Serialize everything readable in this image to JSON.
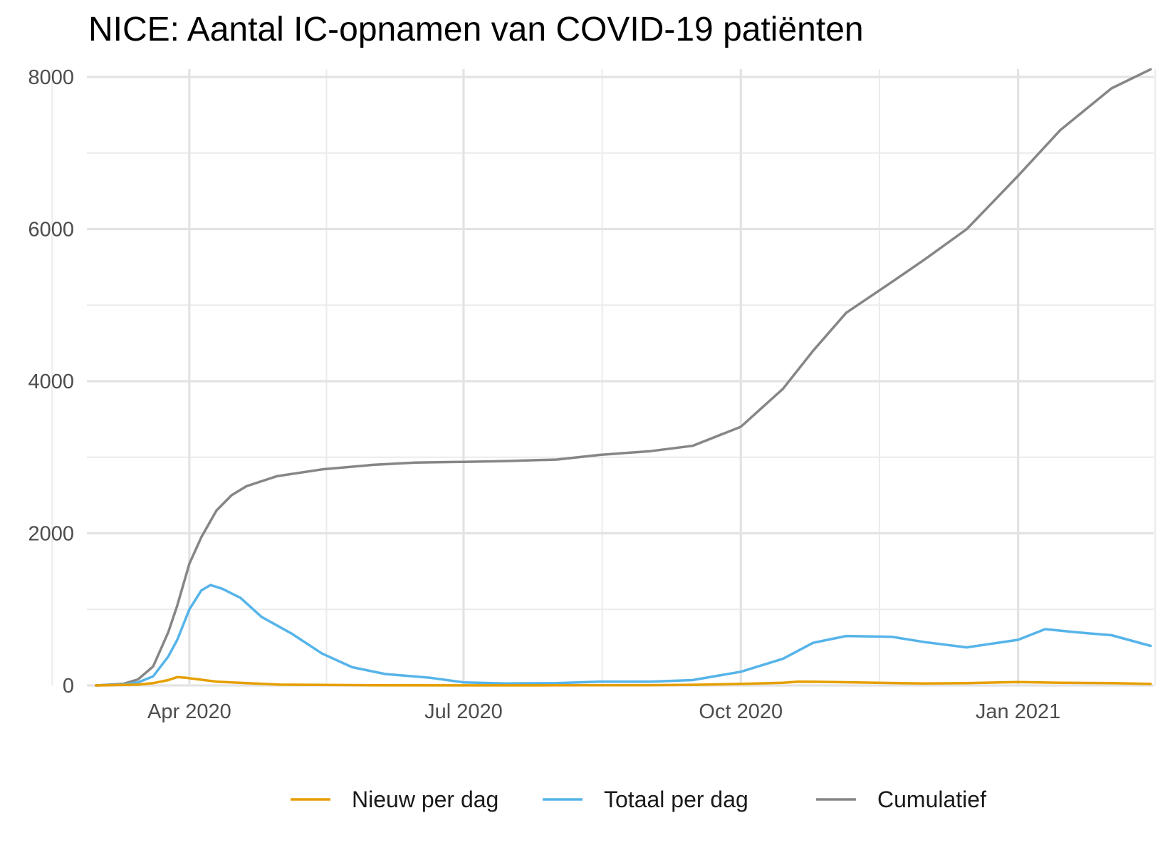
{
  "chart_data": {
    "type": "line",
    "title": "NICE: Aantal IC-opnamen van COVID-19 patiënten",
    "xlabel": "",
    "ylabel": "",
    "ylim": [
      0,
      8000
    ],
    "xlim": [
      "2020-02-27",
      "2021-02-15"
    ],
    "grid": true,
    "legend_position": "bottom",
    "y_ticks": [
      0,
      2000,
      4000,
      6000,
      8000
    ],
    "y_tick_labels": [
      "0",
      "2000",
      "4000",
      "6000",
      "8000"
    ],
    "x_ticks": [
      "2020-04-01",
      "2020-07-01",
      "2020-10-01",
      "2021-01-01"
    ],
    "x_tick_labels": [
      "Apr 2020",
      "Jul 2020",
      "Oct 2020",
      "Jan 2021"
    ],
    "series": [
      {
        "name": "Nieuw per dag",
        "color": "#E69F00",
        "x": [
          "2020-03-01",
          "2020-03-15",
          "2020-03-20",
          "2020-03-25",
          "2020-03-28",
          "2020-03-31",
          "2020-04-04",
          "2020-04-10",
          "2020-04-20",
          "2020-05-01",
          "2020-06-01",
          "2020-07-01",
          "2020-08-01",
          "2020-09-01",
          "2020-09-15",
          "2020-10-01",
          "2020-10-15",
          "2020-10-20",
          "2020-11-01",
          "2020-11-15",
          "2020-12-01",
          "2020-12-15",
          "2021-01-01",
          "2021-01-15",
          "2021-02-01",
          "2021-02-14"
        ],
        "values": [
          0,
          10,
          30,
          70,
          110,
          100,
          80,
          50,
          30,
          10,
          3,
          1,
          2,
          4,
          8,
          20,
          35,
          50,
          45,
          35,
          25,
          30,
          45,
          35,
          30,
          20
        ]
      },
      {
        "name": "Totaal per dag",
        "color": "#56B4E9",
        "x": [
          "2020-03-01",
          "2020-03-10",
          "2020-03-15",
          "2020-03-20",
          "2020-03-25",
          "2020-03-28",
          "2020-04-01",
          "2020-04-05",
          "2020-04-08",
          "2020-04-12",
          "2020-04-18",
          "2020-04-25",
          "2020-05-05",
          "2020-05-15",
          "2020-05-25",
          "2020-06-05",
          "2020-06-20",
          "2020-07-01",
          "2020-07-15",
          "2020-08-01",
          "2020-08-15",
          "2020-09-01",
          "2020-09-15",
          "2020-10-01",
          "2020-10-15",
          "2020-10-25",
          "2020-11-05",
          "2020-11-20",
          "2020-12-01",
          "2020-12-15",
          "2021-01-01",
          "2021-01-10",
          "2021-01-20",
          "2021-02-01",
          "2021-02-14"
        ],
        "values": [
          0,
          10,
          40,
          120,
          380,
          600,
          1000,
          1250,
          1320,
          1270,
          1150,
          900,
          680,
          420,
          240,
          150,
          100,
          40,
          25,
          30,
          50,
          50,
          70,
          180,
          350,
          560,
          650,
          640,
          570,
          500,
          600,
          740,
          700,
          660,
          520
        ]
      },
      {
        "name": "Cumulatief",
        "color": "#868686",
        "x": [
          "2020-03-01",
          "2020-03-10",
          "2020-03-15",
          "2020-03-20",
          "2020-03-25",
          "2020-03-28",
          "2020-04-01",
          "2020-04-05",
          "2020-04-10",
          "2020-04-15",
          "2020-04-20",
          "2020-04-30",
          "2020-05-15",
          "2020-06-01",
          "2020-06-15",
          "2020-07-01",
          "2020-07-15",
          "2020-08-01",
          "2020-08-15",
          "2020-09-01",
          "2020-09-15",
          "2020-10-01",
          "2020-10-15",
          "2020-10-25",
          "2020-11-05",
          "2020-11-20",
          "2020-12-01",
          "2020-12-15",
          "2021-01-01",
          "2021-01-15",
          "2021-02-01",
          "2021-02-14"
        ],
        "values": [
          0,
          20,
          80,
          250,
          700,
          1050,
          1600,
          1950,
          2300,
          2500,
          2620,
          2750,
          2840,
          2900,
          2930,
          2940,
          2950,
          2970,
          3030,
          3080,
          3150,
          3400,
          3900,
          4400,
          4900,
          5300,
          5600,
          6000,
          6700,
          7300,
          7850,
          8100
        ]
      }
    ]
  }
}
